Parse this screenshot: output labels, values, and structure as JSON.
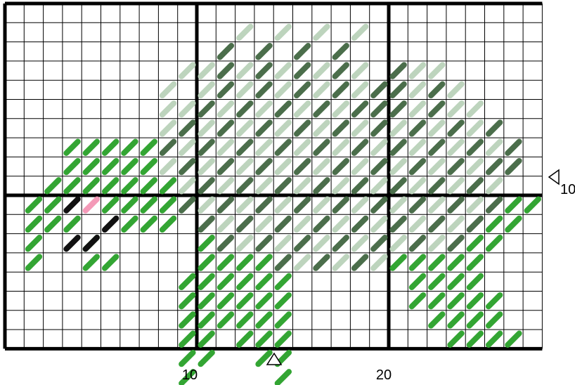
{
  "pattern": {
    "labels": {
      "x_ticks": [
        {
          "value": 10,
          "text": "10"
        },
        {
          "value": 20,
          "text": "20"
        }
      ],
      "y_ticks": [
        {
          "value": 10,
          "text": "10"
        }
      ]
    },
    "center_markers": {
      "x_arrow_col": 14,
      "y_arrow_row": 10
    },
    "palette": {
      "grid_line": "#000000",
      "medium_green": "#33a533",
      "dark_green": "#4b6e4b",
      "light_green": "#bdd4bd",
      "black": "#111111",
      "pink": "#f49ab8",
      "background": "#ffffff"
    },
    "stitch_rows": [
      {
        "color": "dark_green",
        "row": 2,
        "cols": [
          11,
          13,
          15,
          17
        ]
      },
      {
        "color": "light_green",
        "row": 1,
        "cols": [
          12,
          14,
          16,
          18
        ]
      },
      {
        "color": "light_green",
        "row": 3,
        "cols": [
          9,
          10,
          12,
          14,
          16,
          18,
          21,
          22
        ]
      },
      {
        "color": "dark_green",
        "row": 3,
        "cols": [
          11,
          13,
          15,
          17,
          20
        ]
      },
      {
        "color": "light_green",
        "row": 4,
        "cols": [
          8,
          10,
          12,
          14,
          16,
          18,
          21,
          23
        ]
      },
      {
        "color": "dark_green",
        "row": 4,
        "cols": [
          11,
          13,
          15,
          17,
          19,
          20,
          22
        ]
      },
      {
        "color": "light_green",
        "row": 5,
        "cols": [
          8,
          9,
          11,
          13,
          15,
          17,
          21,
          23,
          24
        ]
      },
      {
        "color": "dark_green",
        "row": 5,
        "cols": [
          10,
          12,
          14,
          16,
          18,
          19,
          20,
          22
        ]
      },
      {
        "color": "medium_green",
        "row": 7,
        "cols": [
          3,
          4,
          5,
          6,
          7
        ]
      },
      {
        "color": "light_green",
        "row": 6,
        "cols": [
          8,
          10,
          12,
          14,
          16,
          18,
          20,
          22,
          24
        ]
      },
      {
        "color": "dark_green",
        "row": 6,
        "cols": [
          9,
          11,
          13,
          15,
          17,
          19,
          21,
          23,
          25
        ]
      },
      {
        "color": "medium_green",
        "row": 8,
        "cols": [
          3,
          4,
          5,
          6,
          7
        ]
      },
      {
        "color": "light_green",
        "row": 7,
        "cols": [
          9,
          11,
          13,
          15,
          17,
          19,
          21,
          23,
          25
        ]
      },
      {
        "color": "dark_green",
        "row": 7,
        "cols": [
          8,
          10,
          12,
          14,
          16,
          18,
          20,
          22,
          24,
          26
        ]
      },
      {
        "color": "medium_green",
        "row": 9,
        "cols": [
          2,
          3,
          4,
          5,
          6,
          7,
          8
        ]
      },
      {
        "color": "light_green",
        "row": 8,
        "cols": [
          8,
          10,
          12,
          14,
          16,
          18,
          20,
          22,
          24
        ]
      },
      {
        "color": "dark_green",
        "row": 8,
        "cols": [
          9,
          11,
          13,
          15,
          17,
          19,
          21,
          23,
          25,
          26
        ]
      },
      {
        "color": "medium_green",
        "row": 10,
        "cols": [
          1,
          2,
          5,
          6,
          7,
          8
        ]
      },
      {
        "color": "black",
        "row": 10,
        "cols": [
          3
        ]
      },
      {
        "color": "pink",
        "row": 10,
        "cols": [
          4
        ]
      },
      {
        "color": "light_green",
        "row": 9,
        "cols": [
          9,
          11,
          13,
          15,
          17,
          19,
          21,
          23,
          25
        ]
      },
      {
        "color": "dark_green",
        "row": 9,
        "cols": [
          10,
          12,
          14,
          16,
          18,
          20,
          22,
          24
        ]
      },
      {
        "color": "medium_green",
        "row": 11,
        "cols": [
          1,
          2,
          3,
          6,
          7,
          8
        ]
      },
      {
        "color": "black",
        "row": 11,
        "cols": [
          5
        ]
      },
      {
        "color": "light_green",
        "row": 10,
        "cols": [
          10,
          12,
          14,
          16,
          18,
          20,
          22,
          24
        ]
      },
      {
        "color": "dark_green",
        "row": 10,
        "cols": [
          9,
          11,
          13,
          15,
          17,
          19,
          21,
          23,
          25
        ]
      },
      {
        "color": "medium_green",
        "row": 10,
        "cols": [
          26,
          27
        ]
      },
      {
        "color": "medium_green",
        "row": 12,
        "cols": [
          1,
          4
        ]
      },
      {
        "color": "black",
        "row": 12,
        "cols": [
          3,
          4
        ]
      },
      {
        "color": "medium_green",
        "row": 13,
        "cols": [
          1,
          4,
          5
        ]
      },
      {
        "color": "light_green",
        "row": 11,
        "cols": [
          11,
          13,
          15,
          17,
          19,
          21,
          23
        ]
      },
      {
        "color": "dark_green",
        "row": 11,
        "cols": [
          10,
          12,
          14,
          16,
          18,
          20,
          22,
          24
        ]
      },
      {
        "color": "medium_green",
        "row": 11,
        "cols": [
          25,
          26
        ]
      },
      {
        "color": "light_green",
        "row": 12,
        "cols": [
          12,
          14,
          16,
          18,
          20,
          22
        ]
      },
      {
        "color": "dark_green",
        "row": 12,
        "cols": [
          11,
          13,
          15,
          17,
          19,
          21,
          23
        ]
      },
      {
        "color": "medium_green",
        "row": 12,
        "cols": [
          10,
          24,
          25
        ]
      },
      {
        "color": "light_green",
        "row": 13,
        "cols": [
          15,
          17,
          19
        ]
      },
      {
        "color": "dark_green",
        "row": 13,
        "cols": [
          14,
          16,
          18
        ]
      },
      {
        "color": "medium_green",
        "row": 13,
        "cols": [
          10,
          11,
          12,
          13,
          20,
          21,
          22,
          23,
          24
        ]
      },
      {
        "color": "medium_green",
        "row": 14,
        "cols": [
          9,
          10,
          11,
          12,
          13,
          14,
          21,
          22,
          23,
          24
        ]
      },
      {
        "color": "medium_green",
        "row": 15,
        "cols": [
          9,
          10,
          11,
          12,
          13,
          14,
          21,
          22,
          23,
          24,
          25
        ]
      },
      {
        "color": "medium_green",
        "row": 16,
        "cols": [
          9,
          10,
          11,
          12,
          13,
          14,
          22,
          23,
          24,
          25
        ]
      },
      {
        "color": "medium_green",
        "row": 17,
        "cols": [
          9,
          10,
          12,
          13,
          14,
          23,
          24,
          25,
          26
        ]
      },
      {
        "color": "medium_green",
        "row": 18,
        "cols": [
          9,
          10,
          13,
          14
        ]
      },
      {
        "color": "medium_green",
        "row": 19,
        "cols": [
          9,
          14
        ]
      }
    ]
  }
}
